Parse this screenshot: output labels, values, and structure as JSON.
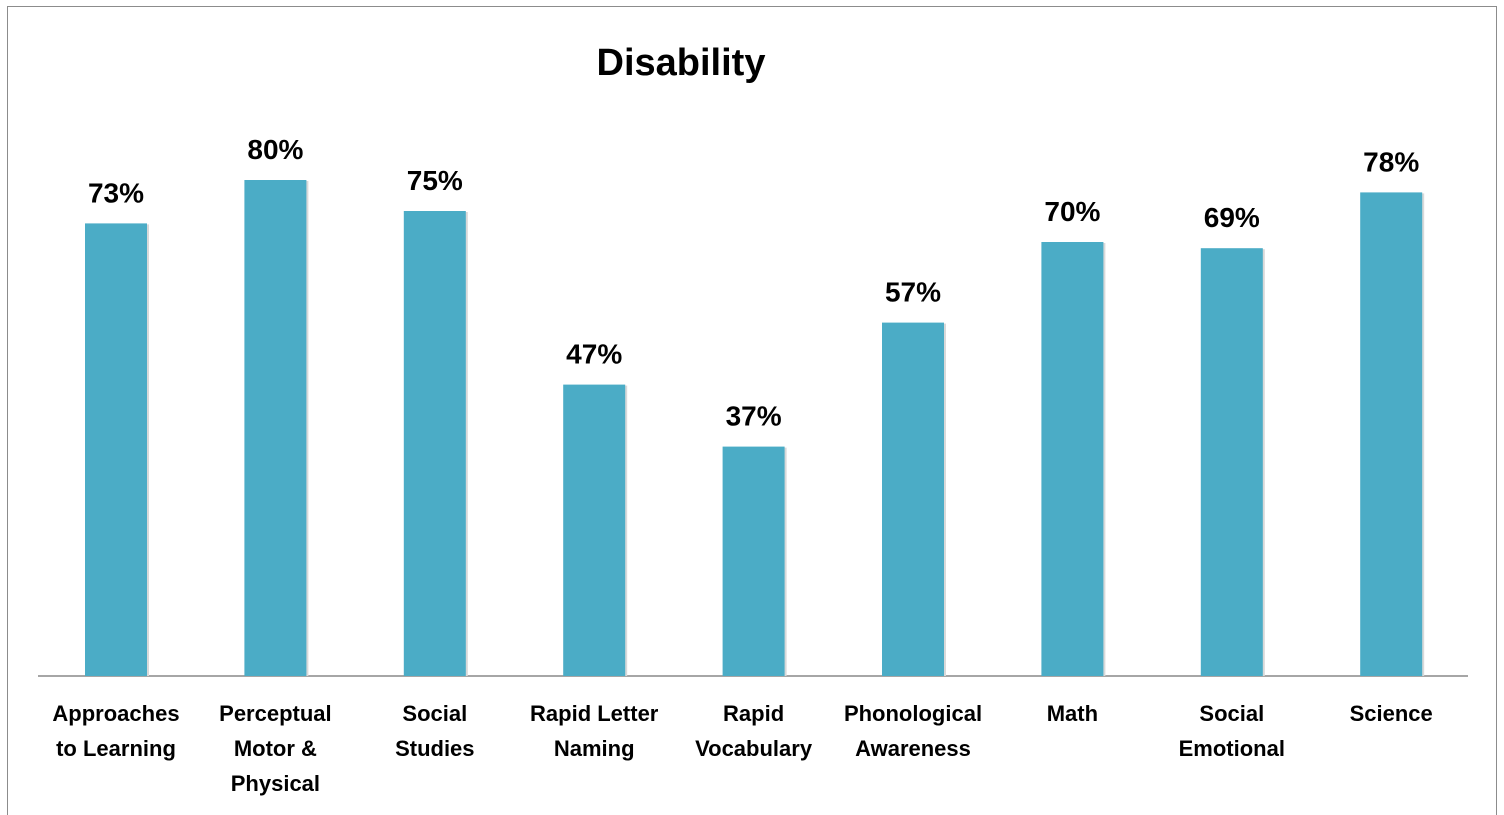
{
  "chart_data": {
    "type": "bar",
    "title": "Disability",
    "xlabel": "",
    "ylabel": "",
    "ylim": [
      0,
      100
    ],
    "grid": false,
    "legend": "none",
    "bar_color": "#4bacc6",
    "categories": [
      [
        "Approaches",
        "to Learning"
      ],
      [
        "Perceptual",
        "Motor  &",
        "Physical"
      ],
      [
        "Social",
        "Studies"
      ],
      [
        "Rapid Letter",
        "Naming"
      ],
      [
        "Rapid",
        "Vocabulary"
      ],
      [
        "Phonological",
        "Awareness"
      ],
      [
        "Math"
      ],
      [
        "Social",
        "Emotional"
      ],
      [
        "Science"
      ]
    ],
    "values": [
      73,
      80,
      75,
      47,
      37,
      57,
      70,
      69,
      78
    ],
    "value_labels": [
      "73%",
      "80%",
      "75%",
      "47%",
      "37%",
      "57%",
      "70%",
      "69%",
      "78%"
    ]
  }
}
